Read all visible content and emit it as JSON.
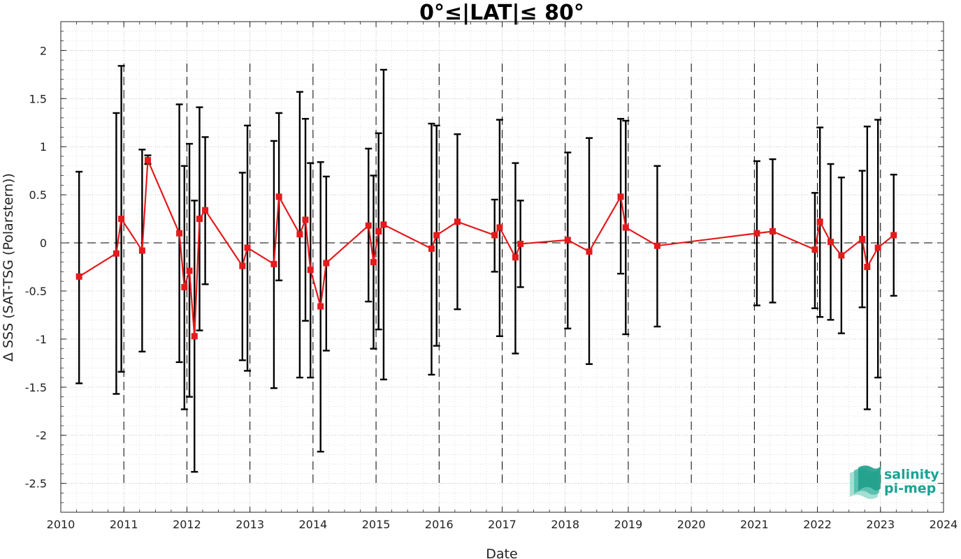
{
  "chart_data": {
    "type": "line",
    "title": "0°≤|LAT|≤ 80°",
    "xlabel": "Date",
    "ylabel": "Δ SSS (SAT-TSG (Polarstern))",
    "xlim": [
      2010.0,
      2024.0
    ],
    "ylim": [
      -2.8,
      2.3
    ],
    "x_ticks": [
      2010,
      2011,
      2012,
      2013,
      2014,
      2015,
      2016,
      2017,
      2018,
      2019,
      2020,
      2021,
      2022,
      2023,
      2024
    ],
    "x_tick_labels": [
      "2010",
      "2011",
      "2012",
      "2013",
      "2014",
      "2015",
      "2016",
      "2017",
      "2018",
      "2019",
      "2020",
      "2021",
      "2022",
      "2023",
      "2024"
    ],
    "y_ticks": [
      -2.5,
      -2,
      -1.5,
      -1,
      -0.5,
      0,
      0.5,
      1,
      1.5,
      2
    ],
    "y_tick_labels": [
      "-2.5",
      "-2",
      "-1.5",
      "-1",
      "-0.5",
      "0",
      "0.5",
      "1",
      "1.5",
      "2"
    ],
    "grid": true,
    "minor_grid": true,
    "zero_line": 0,
    "year_markers": [
      2011,
      2012,
      2013,
      2014,
      2015,
      2016,
      2017,
      2018,
      2019,
      2020,
      2021,
      2022,
      2023
    ],
    "series": [
      {
        "color": "#e41a1c",
        "marker": "square",
        "points": [
          {
            "x": 2010.29,
            "y": -0.35,
            "err_low": -1.46,
            "err_high": 0.74
          },
          {
            "x": 2010.88,
            "y": -0.11,
            "err_low": -1.57,
            "err_high": 1.35
          },
          {
            "x": 2010.96,
            "y": 0.25,
            "err_low": -1.34,
            "err_high": 1.84
          },
          {
            "x": 2011.29,
            "y": -0.08,
            "err_low": -1.13,
            "err_high": 0.97
          },
          {
            "x": 2011.38,
            "y": 0.86,
            "err_low": 0.82,
            "err_high": 0.91
          },
          {
            "x": 2011.88,
            "y": 0.1,
            "err_low": -1.24,
            "err_high": 1.44
          },
          {
            "x": 2011.96,
            "y": -0.46,
            "err_low": -1.73,
            "err_high": 0.8
          },
          {
            "x": 2012.04,
            "y": -0.29,
            "err_low": -1.6,
            "err_high": 1.03
          },
          {
            "x": 2012.12,
            "y": -0.97,
            "err_low": -2.38,
            "err_high": 0.44
          },
          {
            "x": 2012.2,
            "y": 0.25,
            "err_low": -0.91,
            "err_high": 1.41
          },
          {
            "x": 2012.29,
            "y": 0.34,
            "err_low": -0.43,
            "err_high": 1.1
          },
          {
            "x": 2012.88,
            "y": -0.24,
            "err_low": -1.22,
            "err_high": 0.73
          },
          {
            "x": 2012.96,
            "y": -0.05,
            "err_low": -1.33,
            "err_high": 1.22
          },
          {
            "x": 2013.38,
            "y": -0.22,
            "err_low": -1.51,
            "err_high": 1.06
          },
          {
            "x": 2013.46,
            "y": 0.48,
            "err_low": -0.39,
            "err_high": 1.35
          },
          {
            "x": 2013.79,
            "y": 0.09,
            "err_low": -1.4,
            "err_high": 1.57
          },
          {
            "x": 2013.88,
            "y": 0.24,
            "err_low": -0.81,
            "err_high": 1.29
          },
          {
            "x": 2013.96,
            "y": -0.28,
            "err_low": -1.4,
            "err_high": 0.83
          },
          {
            "x": 2014.12,
            "y": -0.66,
            "err_low": -2.17,
            "err_high": 0.84
          },
          {
            "x": 2014.21,
            "y": -0.21,
            "err_low": -1.12,
            "err_high": 0.69
          },
          {
            "x": 2014.88,
            "y": 0.18,
            "err_low": -0.61,
            "err_high": 0.98
          },
          {
            "x": 2014.96,
            "y": -0.2,
            "err_low": -1.1,
            "err_high": 0.7
          },
          {
            "x": 2015.04,
            "y": 0.12,
            "err_low": -0.9,
            "err_high": 1.14
          },
          {
            "x": 2015.12,
            "y": 0.19,
            "err_low": -1.42,
            "err_high": 1.8
          },
          {
            "x": 2015.88,
            "y": -0.06,
            "err_low": -1.37,
            "err_high": 1.24
          },
          {
            "x": 2015.96,
            "y": 0.08,
            "err_low": -1.07,
            "err_high": 1.22
          },
          {
            "x": 2016.29,
            "y": 0.22,
            "err_low": -0.69,
            "err_high": 1.13
          },
          {
            "x": 2016.88,
            "y": 0.08,
            "err_low": -0.3,
            "err_high": 0.45
          },
          {
            "x": 2016.96,
            "y": 0.16,
            "err_low": -0.97,
            "err_high": 1.28
          },
          {
            "x": 2017.21,
            "y": -0.15,
            "err_low": -1.15,
            "err_high": 0.83
          },
          {
            "x": 2017.29,
            "y": -0.01,
            "err_low": -0.46,
            "err_high": 0.44
          },
          {
            "x": 2018.04,
            "y": 0.03,
            "err_low": -0.89,
            "err_high": 0.94
          },
          {
            "x": 2018.38,
            "y": -0.09,
            "err_low": -1.26,
            "err_high": 1.09
          },
          {
            "x": 2018.88,
            "y": 0.48,
            "err_low": -0.32,
            "err_high": 1.29
          },
          {
            "x": 2018.96,
            "y": 0.16,
            "err_low": -0.95,
            "err_high": 1.27
          },
          {
            "x": 2019.46,
            "y": -0.03,
            "err_low": -0.87,
            "err_high": 0.8
          },
          {
            "x": 2021.04,
            "y": 0.1,
            "err_low": -0.65,
            "err_high": 0.85
          },
          {
            "x": 2021.29,
            "y": 0.12,
            "err_low": -0.62,
            "err_high": 0.87
          },
          {
            "x": 2021.96,
            "y": -0.07,
            "err_low": -0.68,
            "err_high": 0.52
          },
          {
            "x": 2022.04,
            "y": 0.22,
            "err_low": -0.77,
            "err_high": 1.2
          },
          {
            "x": 2022.21,
            "y": 0.01,
            "err_low": -0.8,
            "err_high": 0.82
          },
          {
            "x": 2022.38,
            "y": -0.13,
            "err_low": -0.94,
            "err_high": 0.68
          },
          {
            "x": 2022.71,
            "y": 0.04,
            "err_low": -0.67,
            "err_high": 0.75
          },
          {
            "x": 2022.79,
            "y": -0.25,
            "err_low": -1.73,
            "err_high": 1.21
          },
          {
            "x": 2022.96,
            "y": -0.05,
            "err_low": -1.4,
            "err_high": 1.28
          },
          {
            "x": 2023.21,
            "y": 0.08,
            "err_low": -0.55,
            "err_high": 0.71
          }
        ]
      }
    ]
  },
  "logo": {
    "line1": "salinity",
    "line2": "pi-mep",
    "color": "#1aa394"
  }
}
